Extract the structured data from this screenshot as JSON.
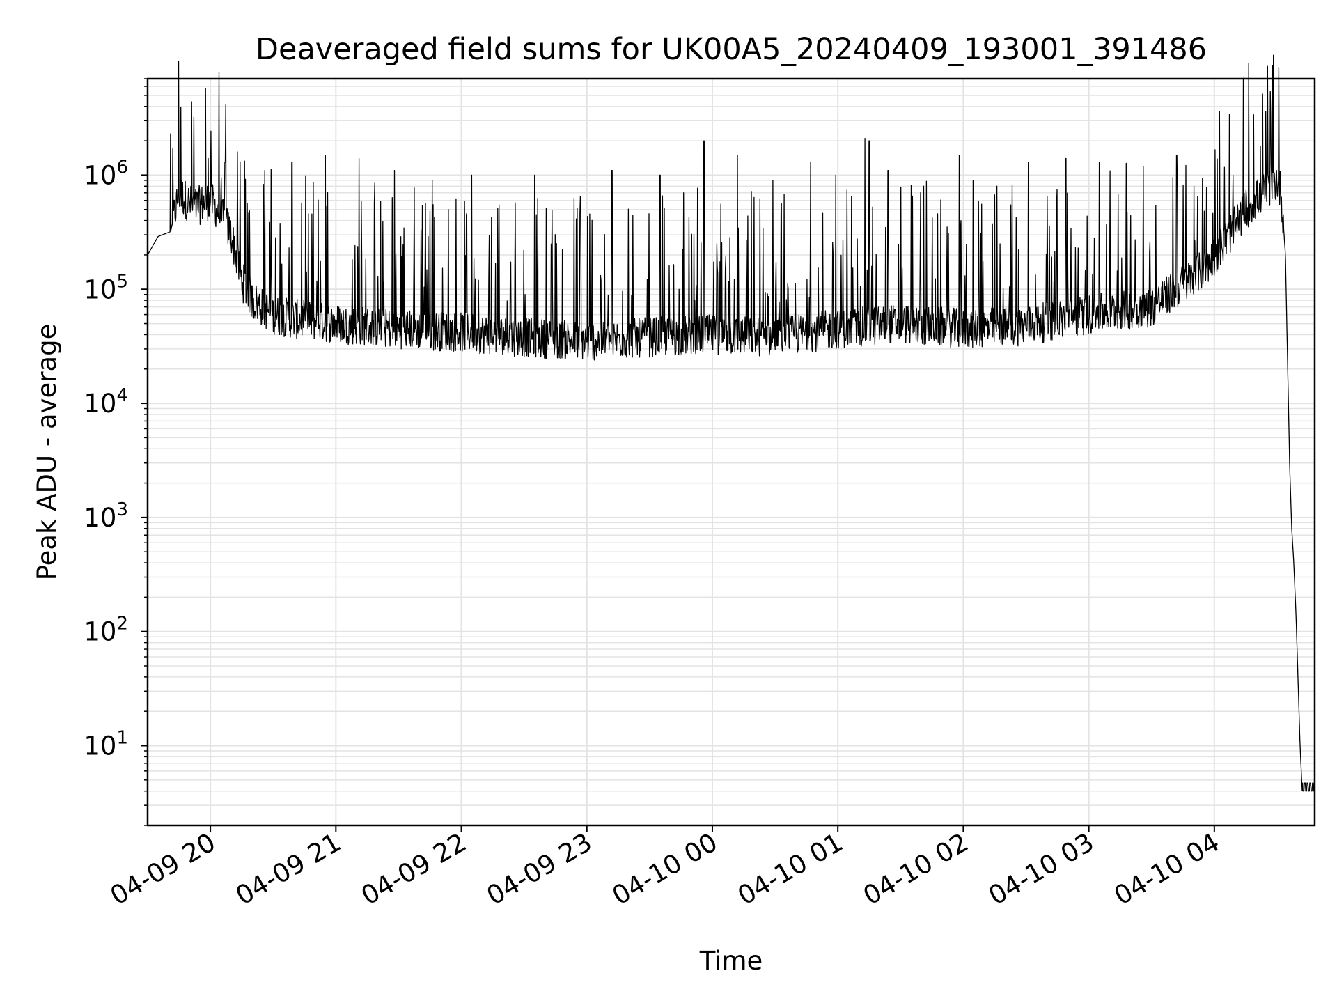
{
  "chart_data": {
    "type": "line",
    "title": "Deaveraged field sums for UK00A5_20240409_193001_391486",
    "xlabel": "Time",
    "ylabel": "Peak ADU - average",
    "y_scale": "log",
    "ylim": [
      2,
      7000000
    ],
    "xlim": [
      "2024-04-09 19:30",
      "2024-04-10 04:48"
    ],
    "grid": true,
    "legend": "none",
    "line_color": "#000000",
    "grid_color": "#e3e3e3",
    "x_ticks": [
      "04-09 20",
      "04-09 21",
      "04-09 22",
      "04-09 23",
      "04-10 00",
      "04-10 01",
      "04-10 02",
      "04-10 03",
      "04-10 04"
    ],
    "y_ticks": [
      {
        "base": "10",
        "exp": "1"
      },
      {
        "base": "10",
        "exp": "2"
      },
      {
        "base": "10",
        "exp": "3"
      },
      {
        "base": "10",
        "exp": "4"
      },
      {
        "base": "10",
        "exp": "5"
      },
      {
        "base": "10",
        "exp": "6"
      }
    ],
    "series": [
      {
        "baseline": [
          [
            "2024-04-09 19:30",
            200000
          ],
          [
            "2024-04-09 19:35",
            290000
          ],
          [
            "2024-04-09 19:41",
            320000
          ],
          [
            "2024-04-09 19:45",
            700000
          ],
          [
            "2024-04-09 19:52",
            520000
          ],
          [
            "2024-04-09 20:00",
            600000
          ],
          [
            "2024-04-09 20:05",
            450000
          ],
          [
            "2024-04-09 20:10",
            300000
          ],
          [
            "2024-04-09 20:15",
            120000
          ],
          [
            "2024-04-09 20:20",
            80000
          ],
          [
            "2024-04-09 20:30",
            60000
          ],
          [
            "2024-04-09 20:40",
            55000
          ],
          [
            "2024-04-09 21:00",
            50000
          ],
          [
            "2024-04-09 21:30",
            45000
          ],
          [
            "2024-04-09 22:00",
            42000
          ],
          [
            "2024-04-09 22:30",
            38000
          ],
          [
            "2024-04-09 23:00",
            35000
          ],
          [
            "2024-04-09 23:30",
            38000
          ],
          [
            "2024-04-10 00:00",
            40000
          ],
          [
            "2024-04-10 00:30",
            38000
          ],
          [
            "2024-04-10 01:00",
            45000
          ],
          [
            "2024-04-10 01:30",
            50000
          ],
          [
            "2024-04-10 02:00",
            45000
          ],
          [
            "2024-04-10 02:30",
            48000
          ],
          [
            "2024-04-10 03:00",
            60000
          ],
          [
            "2024-04-10 03:30",
            70000
          ],
          [
            "2024-04-10 03:55",
            150000
          ],
          [
            "2024-04-10 04:05",
            260000
          ],
          [
            "2024-04-10 04:15",
            500000
          ],
          [
            "2024-04-10 04:25",
            750000
          ],
          [
            "2024-04-10 04:30",
            900000
          ],
          [
            "2024-04-10 04:32",
            700000
          ],
          [
            "2024-04-10 04:34",
            200000
          ],
          [
            "2024-04-10 04:36",
            3000
          ],
          [
            "2024-04-10 04:37",
            800
          ],
          [
            "2024-04-10 04:38",
            400
          ],
          [
            "2024-04-10 04:39",
            150
          ],
          [
            "2024-04-10 04:40",
            40
          ],
          [
            "2024-04-10 04:41",
            10
          ],
          [
            "2024-04-10 04:42",
            4
          ],
          [
            "2024-04-10 04:48",
            4
          ]
        ],
        "spikes": [
          [
            "2024-04-09 19:41",
            2300000
          ],
          [
            "2024-04-09 19:42",
            1700000
          ],
          [
            "2024-04-09 19:59",
            1400000
          ],
          [
            "2024-04-09 20:07",
            1300000
          ],
          [
            "2024-04-09 20:13",
            1600000
          ],
          [
            "2024-04-09 20:26",
            1100000
          ],
          [
            "2024-04-09 20:39",
            1300000
          ],
          [
            "2024-04-09 20:55",
            1500000
          ],
          [
            "2024-04-09 21:11",
            1400000
          ],
          [
            "2024-04-09 21:28",
            1100000
          ],
          [
            "2024-04-09 21:46",
            900000
          ],
          [
            "2024-04-09 22:05",
            1000000
          ],
          [
            "2024-04-09 22:18",
            550000
          ],
          [
            "2024-04-09 22:35",
            1000000
          ],
          [
            "2024-04-09 22:57",
            650000
          ],
          [
            "2024-04-09 23:12",
            1100000
          ],
          [
            "2024-04-09 23:35",
            1000000
          ],
          [
            "2024-04-09 23:56",
            2000000
          ],
          [
            "2024-04-10 00:12",
            1500000
          ],
          [
            "2024-04-10 00:29",
            900000
          ],
          [
            "2024-04-10 00:47",
            1300000
          ],
          [
            "2024-04-10 00:59",
            1000000
          ],
          [
            "2024-04-10 01:13",
            2100000
          ],
          [
            "2024-04-10 01:15",
            2000000
          ],
          [
            "2024-04-10 01:24",
            1100000
          ],
          [
            "2024-04-10 01:41",
            800000
          ],
          [
            "2024-04-10 01:58",
            1500000
          ],
          [
            "2024-04-10 02:16",
            800000
          ],
          [
            "2024-04-10 02:31",
            1300000
          ],
          [
            "2024-04-10 02:49",
            1400000
          ],
          [
            "2024-04-10 03:05",
            1300000
          ],
          [
            "2024-04-10 03:26",
            1200000
          ],
          [
            "2024-04-10 03:42",
            1500000
          ],
          [
            "2024-04-10 04:09",
            1000000
          ],
          [
            "2024-04-10 04:22",
            1800000
          ],
          [
            "2024-04-10 04:27",
            3500000
          ]
        ]
      }
    ]
  }
}
